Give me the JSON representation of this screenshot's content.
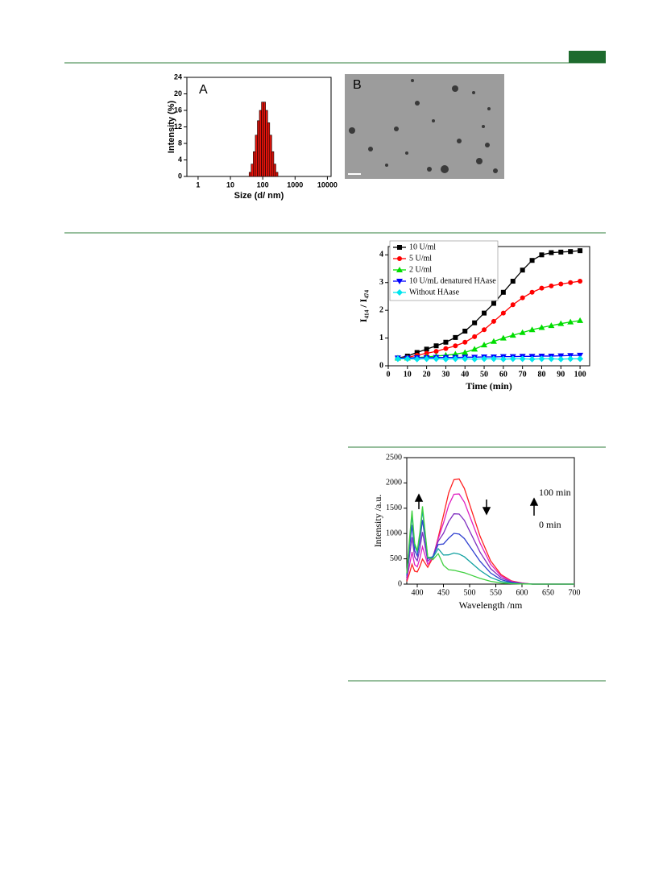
{
  "chart_data": [
    {
      "type": "histogram",
      "title": "A",
      "xlabel": "Size (d/ nm)",
      "ylabel": "Intensity (%)",
      "xscale": "log",
      "color": "#e8140c",
      "bins": [
        37.8,
        43.8,
        50.7,
        58.8,
        68.1,
        78.8,
        91.3,
        105.7,
        122.4,
        141.8,
        164.2,
        190.1,
        220.2,
        255,
        295.3
      ],
      "values": [
        1,
        3,
        6,
        10,
        13.5,
        16,
        18,
        18,
        16,
        13,
        10,
        6,
        3,
        1
      ],
      "xlim": [
        0.45,
        13000
      ],
      "xticks": [
        1,
        10,
        100,
        1000,
        10000
      ],
      "ylim": [
        0,
        24
      ],
      "yticks": [
        0,
        4,
        8,
        12,
        16,
        20,
        24
      ]
    },
    {
      "type": "line",
      "xlabel": "Time (min)",
      "ylabel": "I₄₁₄ / I₄₇₄",
      "x": [
        5,
        10,
        15,
        20,
        25,
        30,
        35,
        40,
        45,
        50,
        55,
        60,
        65,
        70,
        75,
        80,
        85,
        90,
        95,
        100
      ],
      "series": [
        {
          "name": "10 U/ml",
          "color": "#000000",
          "marker": "square",
          "values": [
            0.28,
            0.35,
            0.48,
            0.6,
            0.72,
            0.85,
            1.02,
            1.25,
            1.55,
            1.9,
            2.25,
            2.65,
            3.05,
            3.45,
            3.8,
            4.0,
            4.08,
            4.1,
            4.12,
            4.15
          ]
        },
        {
          "name": "5 U/ml",
          "color": "#ff0000",
          "marker": "circle",
          "values": [
            0.28,
            0.3,
            0.38,
            0.45,
            0.52,
            0.62,
            0.72,
            0.85,
            1.05,
            1.3,
            1.6,
            1.9,
            2.2,
            2.45,
            2.65,
            2.8,
            2.88,
            2.95,
            3.0,
            3.05
          ]
        },
        {
          "name": "2 U/ml",
          "color": "#00dd00",
          "marker": "triangle-up",
          "values": [
            0.28,
            0.28,
            0.3,
            0.32,
            0.35,
            0.38,
            0.42,
            0.48,
            0.6,
            0.75,
            0.88,
            1.0,
            1.1,
            1.2,
            1.3,
            1.38,
            1.45,
            1.52,
            1.58,
            1.63
          ]
        },
        {
          "name": "10 U/mL denatured HAase",
          "color": "#0000ff",
          "marker": "triangle-down",
          "values": [
            0.28,
            0.28,
            0.29,
            0.29,
            0.3,
            0.3,
            0.3,
            0.31,
            0.31,
            0.32,
            0.32,
            0.33,
            0.33,
            0.34,
            0.34,
            0.35,
            0.35,
            0.36,
            0.37,
            0.38
          ]
        },
        {
          "name": "Without HAase",
          "color": "#00e5ee",
          "marker": "diamond",
          "values": [
            0.25,
            0.25,
            0.24,
            0.25,
            0.25,
            0.24,
            0.25,
            0.25,
            0.24,
            0.25,
            0.25,
            0.24,
            0.25,
            0.25,
            0.24,
            0.25,
            0.25,
            0.24,
            0.25,
            0.25
          ]
        }
      ],
      "xlim": [
        0,
        105
      ],
      "xticks": [
        0,
        10,
        20,
        30,
        40,
        50,
        60,
        70,
        80,
        90,
        100
      ],
      "ylim": [
        0,
        4.3
      ],
      "yticks": [
        0,
        1,
        2,
        3,
        4
      ],
      "legend": "top-left"
    },
    {
      "type": "line",
      "xlabel": "Wavelength /nm",
      "ylabel": "Intensity /a.u.",
      "annotations": [
        "100 min",
        "0 min"
      ],
      "x": [
        380,
        385,
        390,
        395,
        400,
        405,
        410,
        415,
        420,
        430,
        440,
        450,
        460,
        470,
        480,
        490,
        500,
        520,
        540,
        560,
        580,
        600,
        620,
        650,
        700
      ],
      "series": [
        {
          "color": "#ff2020",
          "values": [
            52,
            210,
            392,
            256,
            242,
            350,
            494,
            413,
            333,
            525,
            921,
            1355,
            1803,
            2065,
            2079,
            1890,
            1575,
            945,
            462,
            189,
            63,
            21,
            0,
            0,
            0
          ]
        },
        {
          "color": "#e020c0",
          "values": [
            90,
            360,
            636,
            384,
            342,
            510,
            738,
            564,
            390,
            540,
            894,
            1206,
            1560,
            1776,
            1782,
            1620,
            1350,
            810,
            396,
            162,
            54,
            18,
            0,
            0,
            0
          ]
        },
        {
          "color": "#8030c0",
          "values": [
            135,
            540,
            928,
            537,
            461,
            700,
            1029,
            742,
            455,
            550,
            847,
            1003,
            1235,
            1390,
            1386,
            1260,
            1050,
            630,
            308,
            126,
            42,
            14,
            0,
            0,
            0
          ]
        },
        {
          "color": "#3040d0",
          "values": [
            173,
            690,
            1170,
            663,
            558,
            855,
            1268,
            885,
            503,
            545,
            783,
            793,
            908,
            1003,
            990,
            900,
            750,
            450,
            220,
            90,
            30,
            10,
            0,
            0,
            0
          ]
        },
        {
          "color": "#10a0a0",
          "values": [
            203,
            810,
            1362,
            761,
            632,
            975,
            1454,
            993,
            533,
            525,
            701,
            575,
            578,
            615,
            594,
            540,
            450,
            270,
            132,
            54,
            18,
            6,
            0,
            0,
            0
          ]
        },
        {
          "color": "#40d040",
          "values": [
            218,
            870,
            1455,
            805,
            663,
            1028,
            1538,
            1035,
            533,
            485,
            603,
            373,
            285,
            274,
            248,
            225,
            188,
            113,
            55,
            23,
            8,
            3,
            0,
            0,
            0
          ]
        }
      ],
      "xlim": [
        380,
        700
      ],
      "xticks": [
        400,
        450,
        500,
        550,
        600,
        650,
        700
      ],
      "ylim": [
        0,
        2500
      ],
      "yticks": [
        0,
        500,
        1000,
        1500,
        2000,
        2500
      ]
    }
  ],
  "image_panel": {
    "label": "B"
  }
}
